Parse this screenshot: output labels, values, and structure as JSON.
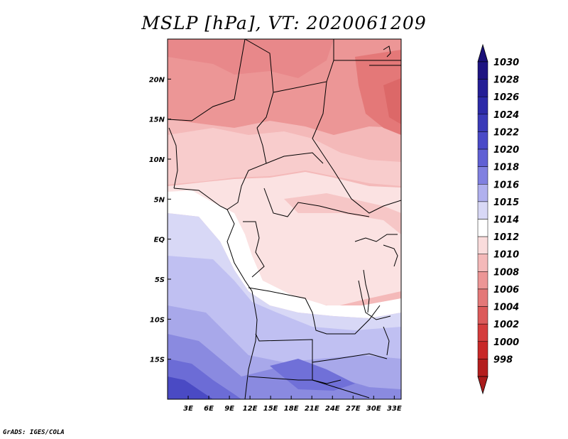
{
  "title": "MSLP [hPa], VT: 2020061209",
  "footer": "GrADS: IGES/COLA",
  "map": {
    "lon_range": [
      0,
      34
    ],
    "lat_range": [
      -20,
      25
    ],
    "lat_ticks": [
      {
        "value": 20,
        "label": "20N"
      },
      {
        "value": 15,
        "label": "15N"
      },
      {
        "value": 10,
        "label": "10N"
      },
      {
        "value": 5,
        "label": "5N"
      },
      {
        "value": 0,
        "label": "EQ"
      },
      {
        "value": -5,
        "label": "5S"
      },
      {
        "value": -10,
        "label": "10S"
      },
      {
        "value": -15,
        "label": "15S"
      }
    ],
    "lon_ticks": [
      {
        "value": 3,
        "label": "3E"
      },
      {
        "value": 6,
        "label": "6E"
      },
      {
        "value": 9,
        "label": "9E"
      },
      {
        "value": 12,
        "label": "12E"
      },
      {
        "value": 15,
        "label": "15E"
      },
      {
        "value": 18,
        "label": "18E"
      },
      {
        "value": 21,
        "label": "21E"
      },
      {
        "value": 24,
        "label": "24E"
      },
      {
        "value": 27,
        "label": "27E"
      },
      {
        "value": 30,
        "label": "30E"
      },
      {
        "value": 33,
        "label": "33E"
      }
    ]
  },
  "colorbar": {
    "levels": [
      {
        "label": "1030",
        "color": "#1e1482"
      },
      {
        "label": "1028",
        "color": "#241e96"
      },
      {
        "label": "1026",
        "color": "#2c2aa8"
      },
      {
        "label": "1024",
        "color": "#3a3ab8"
      },
      {
        "label": "1022",
        "color": "#4a4ac8"
      },
      {
        "label": "1020",
        "color": "#6060d4"
      },
      {
        "label": "1018",
        "color": "#8080e0"
      },
      {
        "label": "1016",
        "color": "#b0b0ee"
      },
      {
        "label": "1015",
        "color": "#d8d8f6"
      },
      {
        "label": "1014",
        "color": "#ffffff"
      },
      {
        "label": "1012",
        "color": "#fadcdc"
      },
      {
        "label": "1010",
        "color": "#f4b9b9"
      },
      {
        "label": "1008",
        "color": "#ec9696"
      },
      {
        "label": "1006",
        "color": "#e47878"
      },
      {
        "label": "1004",
        "color": "#dc5a5a"
      },
      {
        "label": "1002",
        "color": "#d43c3c"
      },
      {
        "label": "1000",
        "color": "#c82828"
      },
      {
        "label": "998",
        "color": "#b41e1e"
      }
    ],
    "top_arrow_color": "#1a1078",
    "bottom_arrow_color": "#aa1c1c"
  }
}
